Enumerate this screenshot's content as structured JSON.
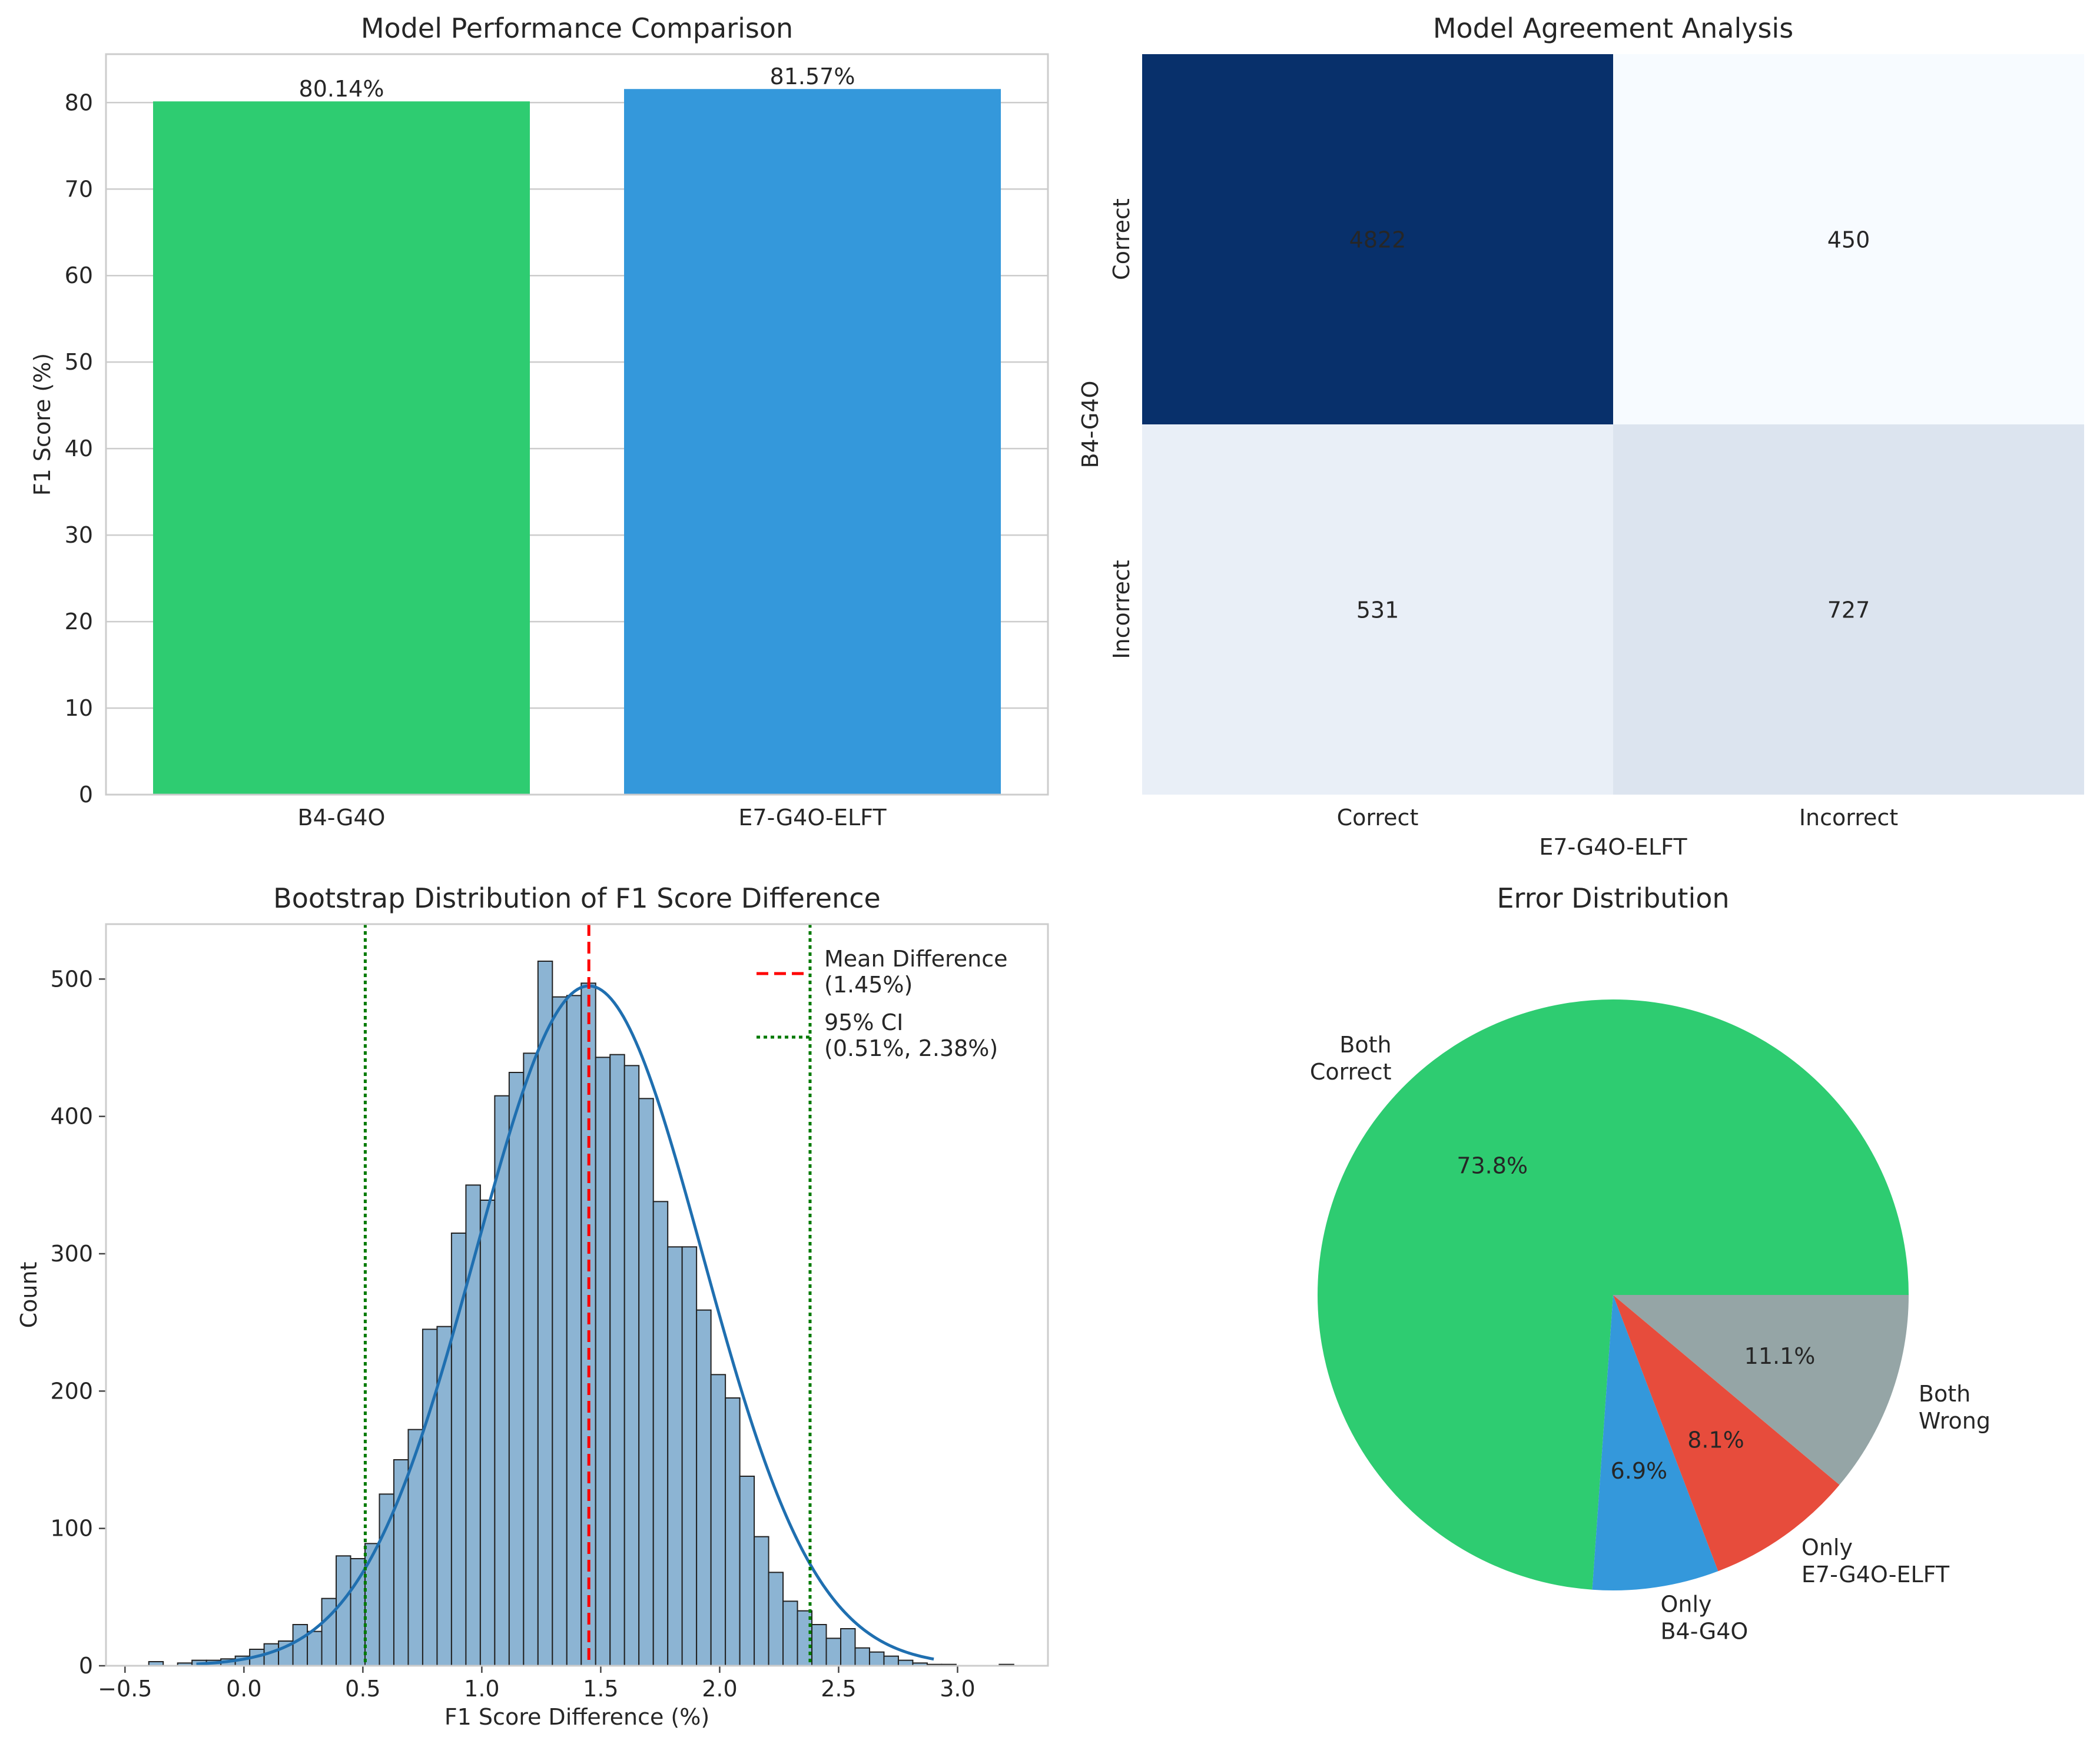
{
  "colors": {
    "green": "#2ecc71",
    "blue": "#3498db",
    "red": "#e74c3c",
    "gray": "#95a5a6",
    "hist_fill": "#8cb4d3",
    "kde": "#1f6fb0",
    "mean_line": "#ff0000",
    "ci_line": "#007a00",
    "heat_dark": "#08306b",
    "heat_light": "#f7fbff",
    "heat_mid": "#eaf2fb",
    "grid": "#cccccc",
    "text": "#262626"
  },
  "chart_data": [
    {
      "type": "bar",
      "title": "Model Performance Comparison",
      "categories": [
        "B4-G4O",
        "E7-G4O-ELFT"
      ],
      "values": [
        80.14,
        81.57
      ],
      "value_labels": [
        "80.14%",
        "81.57%"
      ],
      "colors": [
        "#2ecc71",
        "#3498db"
      ],
      "xlabel": "",
      "ylabel": "F1 Score (%)",
      "ylim": [
        0,
        85.6
      ],
      "yticks": [
        0,
        10,
        20,
        30,
        40,
        50,
        60,
        70,
        80
      ],
      "grid": true
    },
    {
      "type": "heatmap",
      "title": "Model Agreement Analysis",
      "xlabel": "E7-G4O-ELFT",
      "ylabel": "B4-G4O",
      "x_categories": [
        "Correct",
        "Incorrect"
      ],
      "y_categories": [
        "Correct",
        "Incorrect"
      ],
      "values": [
        [
          4822,
          450
        ],
        [
          531,
          727
        ]
      ],
      "colormap": "Blues"
    },
    {
      "type": "histogram",
      "title": "Bootstrap Distribution of F1 Score Difference",
      "xlabel": "F1 Score Difference (%)",
      "ylabel": "Count",
      "bin_start": -0.4,
      "bin_width": 0.0606,
      "counts": [
        3,
        0,
        2,
        4,
        4,
        5,
        7,
        12,
        16,
        18,
        30,
        25,
        49,
        80,
        78,
        89,
        125,
        150,
        172,
        245,
        247,
        315,
        350,
        339,
        415,
        432,
        446,
        513,
        487,
        488,
        497,
        443,
        445,
        437,
        413,
        338,
        305,
        305,
        259,
        212,
        195,
        138,
        94,
        68,
        47,
        40,
        30,
        20,
        27,
        13,
        10,
        7,
        4,
        2,
        1,
        1,
        0,
        0,
        0,
        1
      ],
      "xticks": [
        -0.5,
        0.0,
        0.5,
        1.0,
        1.5,
        2.0,
        2.5,
        3.0
      ],
      "xtick_labels": [
        "−0.5",
        "0.0",
        "0.5",
        "1.0",
        "1.5",
        "2.0",
        "2.5",
        "3.0"
      ],
      "yticks": [
        0,
        100,
        200,
        300,
        400,
        500
      ],
      "xlim": [
        -0.58,
        3.38
      ],
      "ylim": [
        0,
        540
      ],
      "mean": 1.45,
      "ci": [
        0.51,
        2.38
      ],
      "kde_peak": 495,
      "legend": [
        {
          "line1": "Mean Difference",
          "line2": "(1.45%)",
          "style": "dashed"
        },
        {
          "line1": "95% CI",
          "line2": "(0.51%, 2.38%)",
          "style": "dotted"
        }
      ],
      "legend_position": "top-right",
      "grid": false
    },
    {
      "type": "pie",
      "title": "Error Distribution",
      "slices": [
        {
          "label": "Both\nCorrect",
          "value": 73.8,
          "pct": "73.8%",
          "color": "#2ecc71"
        },
        {
          "label": "Only\nB4-G4O",
          "value": 6.9,
          "pct": "6.9%",
          "color": "#3498db"
        },
        {
          "label": "Only\nE7-G4O-ELFT",
          "value": 8.1,
          "pct": "8.1%",
          "color": "#e74c3c"
        },
        {
          "label": "Both\nWrong",
          "value": 11.1,
          "pct": "11.1%",
          "color": "#95a5a6"
        }
      ]
    }
  ]
}
